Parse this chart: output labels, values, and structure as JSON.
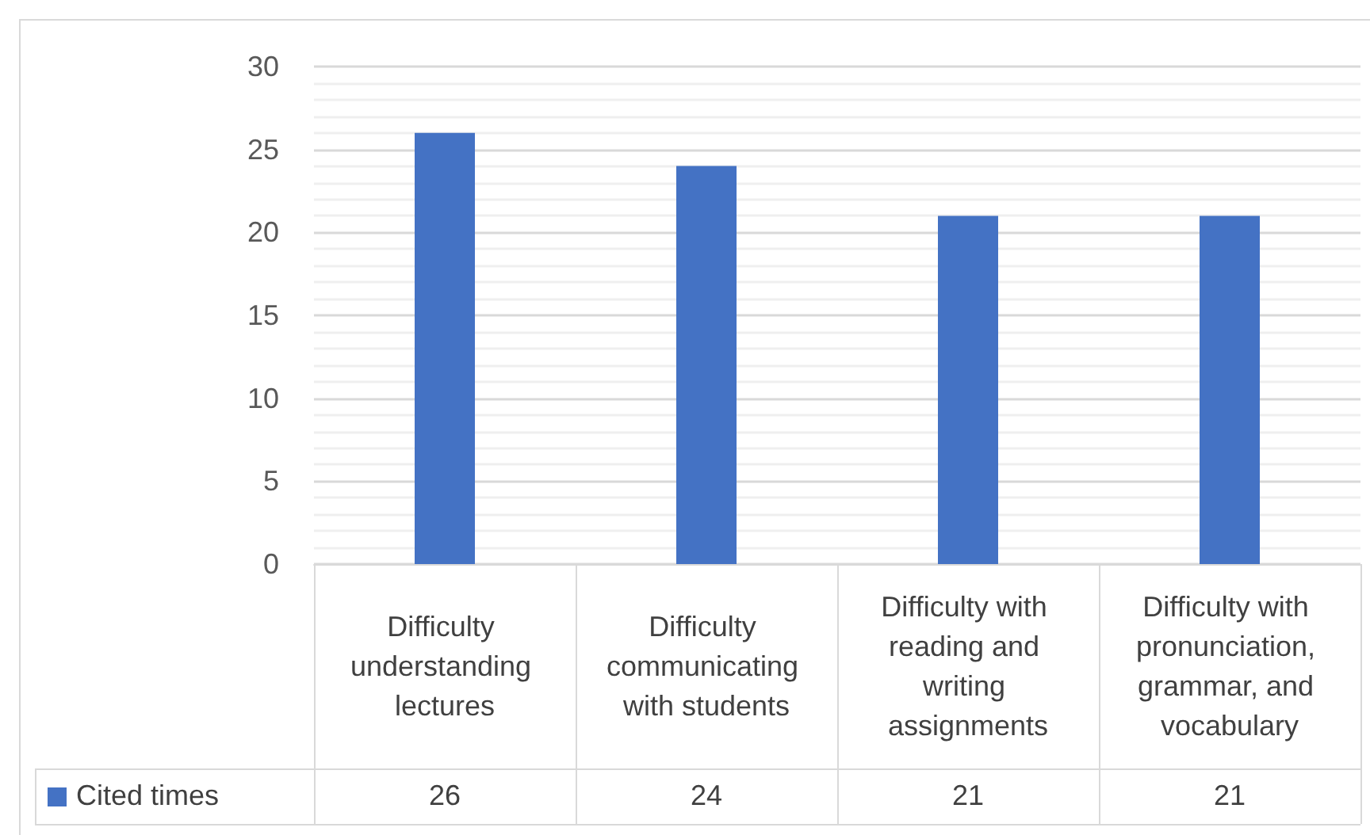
{
  "chart_data": {
    "type": "bar",
    "categories": [
      "Difficulty understanding lectures",
      "Difficulty communicating with students",
      "Difficulty with reading and writing assignments",
      "Difficulty with pronunciation, grammar, and vocabulary"
    ],
    "series": [
      {
        "name": "Cited times",
        "color": "#4472c4",
        "values": [
          26,
          24,
          21,
          21
        ]
      }
    ],
    "ylim": [
      0,
      30
    ],
    "yticks": [
      0,
      5,
      10,
      15,
      20,
      25,
      30
    ],
    "grid": true,
    "legend": "bottom left",
    "data_labels": true
  }
}
